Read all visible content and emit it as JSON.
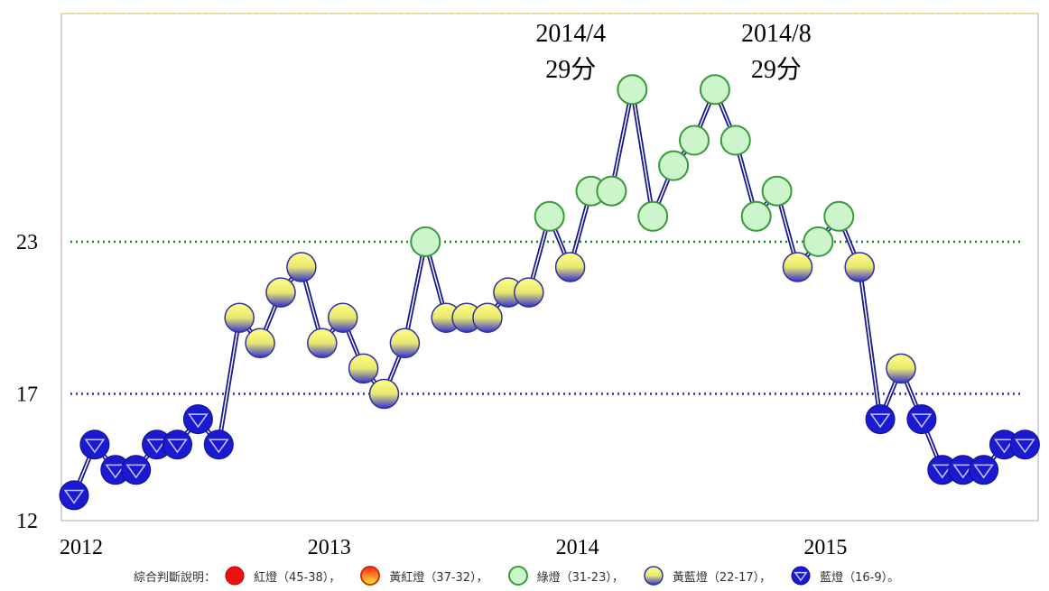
{
  "chart_data": {
    "type": "line",
    "categories": [
      "2012",
      null,
      null,
      null,
      null,
      null,
      null,
      null,
      null,
      null,
      null,
      null,
      "2013",
      null,
      null,
      null,
      null,
      null,
      null,
      null,
      null,
      null,
      null,
      null,
      "2014",
      null,
      null,
      null,
      null,
      null,
      null,
      null,
      null,
      null,
      null,
      null,
      "2015",
      null,
      null,
      null,
      null,
      null,
      null,
      null,
      null,
      null,
      null
    ],
    "series": [
      {
        "color": "#1a1a8c",
        "values": [
          13,
          15,
          14,
          14,
          15,
          15,
          16,
          15,
          20,
          19,
          21,
          22,
          19,
          20,
          18,
          17,
          19,
          23,
          20,
          20,
          20,
          21,
          21,
          24,
          22,
          25,
          25,
          29,
          24,
          26,
          27,
          29,
          27,
          24,
          25,
          22,
          23,
          24,
          22,
          16,
          18,
          16,
          14,
          14,
          14,
          15,
          15
        ]
      }
    ],
    "ylim": [
      12,
      32
    ],
    "yticks": [
      12,
      17,
      23
    ],
    "reference_lines": [
      {
        "value": 23,
        "color": "#1f8a1f"
      },
      {
        "value": 17,
        "color": "#2525c8"
      }
    ],
    "annotations": [
      {
        "index": 27,
        "lines": [
          "2014/4",
          "29分"
        ]
      },
      {
        "index": 31,
        "lines": [
          "2014/8",
          "29分"
        ]
      }
    ],
    "legend_title": "綜合判斷說明：",
    "legend": [
      {
        "label": "紅燈（45-38），",
        "min": 38,
        "max": 45
      },
      {
        "label": "黃紅燈（37-32），",
        "min": 32,
        "max": 37
      },
      {
        "label": "綠燈（31-23），",
        "min": 23,
        "max": 31
      },
      {
        "label": "黃藍燈（22-17），",
        "min": 17,
        "max": 22
      },
      {
        "label": "藍燈（16-9）。",
        "min": 9,
        "max": 16
      }
    ]
  }
}
